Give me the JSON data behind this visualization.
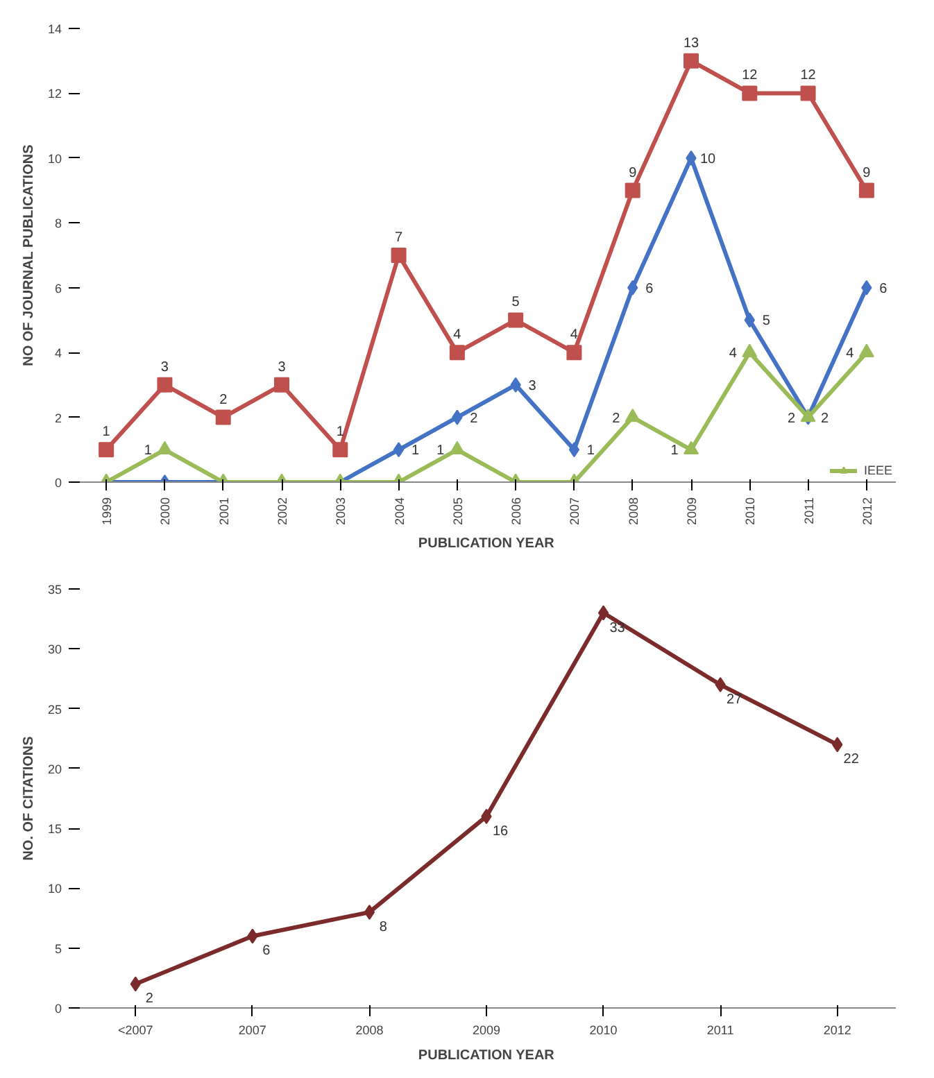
{
  "chart_data": [
    {
      "type": "line",
      "xlabel": "PUBLICATION YEAR",
      "ylabel": "NO OF JOURNAL PUBLICATIONS",
      "categories": [
        "1999",
        "2000",
        "2001",
        "2002",
        "2003",
        "2004",
        "2005",
        "2006",
        "2007",
        "2008",
        "2009",
        "2010",
        "2011",
        "2012"
      ],
      "ylim": [
        0,
        14
      ],
      "yticks": [
        0,
        2,
        4,
        6,
        8,
        10,
        12,
        14
      ],
      "grid": false,
      "legend": "bottom right",
      "series": [
        {
          "color": "#4472c4",
          "marker": "diamond",
          "values": [
            0,
            0,
            0,
            0,
            0,
            1,
            2,
            3,
            1,
            6,
            10,
            5,
            2,
            6
          ],
          "value_labels": [
            null,
            null,
            null,
            null,
            null,
            "1",
            "2",
            "3",
            "1",
            "6",
            "10",
            "5",
            "2",
            "6"
          ]
        },
        {
          "color": "#c0504d",
          "marker": "square",
          "values": [
            1,
            3,
            2,
            3,
            1,
            7,
            4,
            5,
            4,
            9,
            13,
            12,
            12,
            9
          ],
          "value_labels": [
            "1",
            "3",
            "2",
            "3",
            "1",
            "7",
            "4",
            "5",
            "4",
            "9",
            "13",
            "12",
            "12",
            "9"
          ]
        },
        {
          "name": "IEEE",
          "color": "#9bbb59",
          "marker": "triangle",
          "values": [
            0,
            1,
            0,
            0,
            0,
            0,
            1,
            0,
            0,
            2,
            1,
            4,
            2,
            4
          ],
          "value_labels": [
            null,
            "1",
            null,
            null,
            null,
            null,
            "1",
            null,
            null,
            "2",
            "1",
            "4",
            "2",
            "4"
          ]
        }
      ]
    },
    {
      "type": "line",
      "xlabel": "PUBLICATION YEAR",
      "ylabel": "NO. OF CITATIONS",
      "categories": [
        "<2007",
        "2007",
        "2008",
        "2009",
        "2010",
        "2011",
        "2012"
      ],
      "ylim": [
        0,
        35
      ],
      "yticks": [
        0,
        5,
        10,
        15,
        20,
        25,
        30,
        35
      ],
      "grid": false,
      "legend": false,
      "data_labels": true,
      "series": [
        {
          "color": "#7b2b2b",
          "marker": "diamond",
          "values": [
            2,
            6,
            8,
            16,
            33,
            27,
            22
          ]
        }
      ]
    }
  ]
}
